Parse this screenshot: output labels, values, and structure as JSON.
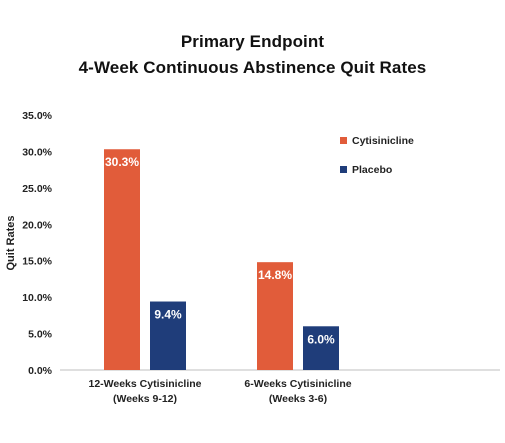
{
  "chart_data": {
    "type": "bar",
    "title_lines": [
      "Primary Endpoint",
      "4-Week Continuous Abstinence Quit Rates"
    ],
    "ylabel": "Quit Rates",
    "xlabel": "",
    "ylim": [
      0,
      35
    ],
    "y_ticks": [
      0,
      5,
      10,
      15,
      20,
      25,
      30,
      35
    ],
    "y_tick_labels": [
      "0.0%",
      "5.0%",
      "10.0%",
      "15.0%",
      "20.0%",
      "25.0%",
      "30.0%",
      "35.0%"
    ],
    "grid": false,
    "legend_position": "top-right",
    "categories": [
      [
        "12-Weeks Cytisinicline",
        "(Weeks 9-12)"
      ],
      [
        "6-Weeks Cytisinicline",
        "(Weeks 3-6)"
      ]
    ],
    "series": [
      {
        "name": "Cytisinicline",
        "color": "#E15C3A",
        "values": [
          30.3,
          14.8
        ],
        "labels": [
          "30.3%",
          "14.8%"
        ]
      },
      {
        "name": "Placebo",
        "color": "#1F3D7A",
        "values": [
          9.4,
          6.0
        ],
        "labels": [
          "9.4%",
          "6.0%"
        ]
      }
    ]
  }
}
